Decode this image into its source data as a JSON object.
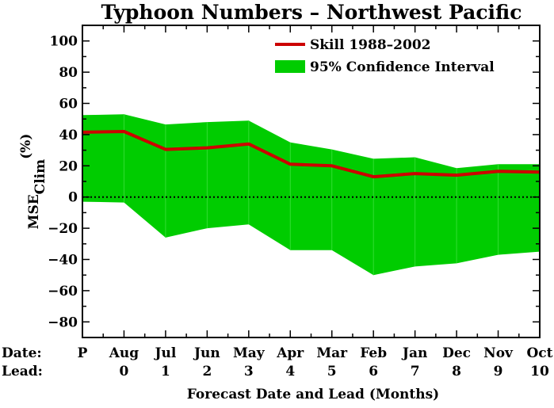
{
  "chart_data": {
    "type": "area",
    "title": "Typhoon Numbers – Northwest Pacific",
    "xlabel": "Forecast Date and Lead (Months)",
    "ylabel_main": "MSE",
    "ylabel_sub": "Clim",
    "ylabel_unit": "(%)",
    "row_labels": {
      "date": "Date:",
      "lead": "Lead:"
    },
    "categories": [
      "P",
      "Aug",
      "Jul",
      "Jun",
      "May",
      "Apr",
      "Mar",
      "Feb",
      "Jan",
      "Dec",
      "Nov",
      "Oct"
    ],
    "leads": [
      "",
      "0",
      "1",
      "2",
      "3",
      "4",
      "5",
      "6",
      "7",
      "8",
      "9",
      "10"
    ],
    "x": [
      -1,
      0,
      1,
      2,
      3,
      4,
      5,
      6,
      7,
      8,
      9,
      10
    ],
    "ylim": [
      -90,
      110
    ],
    "yticks": [
      -80,
      -60,
      -40,
      -20,
      0,
      20,
      40,
      60,
      80,
      100
    ],
    "series": [
      {
        "name": "Skill 1988–2002",
        "type": "line",
        "color": "#cc0000",
        "values": [
          41.5,
          42,
          30.5,
          31.5,
          34,
          21,
          20,
          13,
          15,
          14,
          16.5,
          16
        ]
      },
      {
        "name": "95% Confidence Interval",
        "type": "band",
        "color": "#00cc00",
        "upper": [
          52.5,
          53,
          46.5,
          48,
          49,
          35,
          30.5,
          24.5,
          25.5,
          18.5,
          21,
          21
        ],
        "lower": [
          -3,
          -3.5,
          -26,
          -20,
          -17.5,
          -34,
          -34,
          -50,
          -44.5,
          -42.5,
          -37,
          -35
        ]
      }
    ],
    "zero_line": "dotted",
    "grid": false,
    "legend_position": "top-right"
  }
}
